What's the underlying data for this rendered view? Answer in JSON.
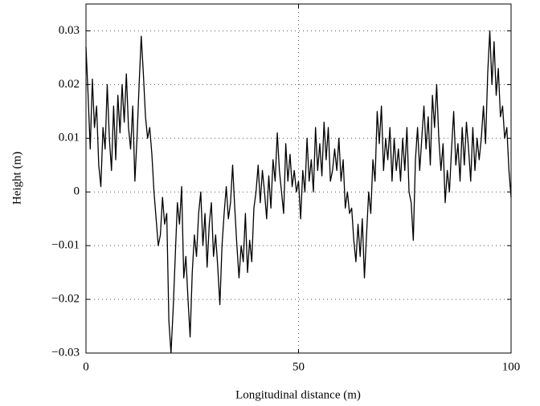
{
  "chart_data": {
    "type": "line",
    "x_label": "Longitudinal distance (m)",
    "y_label": "Height (m)",
    "xlim": [
      0,
      100
    ],
    "xticks": [
      0,
      50,
      100
    ],
    "ylim": [
      -0.03,
      0.035
    ],
    "yticks": [
      {
        "value": -0.03,
        "label": "−0.03"
      },
      {
        "value": -0.02,
        "label": "−0.02"
      },
      {
        "value": -0.01,
        "label": "−0.01"
      },
      0,
      0.01,
      0.02,
      0.03
    ],
    "grid": true,
    "x": [
      0,
      0.5,
      1,
      1.5,
      2,
      2.5,
      3,
      3.5,
      4,
      4.5,
      5,
      5.5,
      6,
      6.5,
      7,
      7.5,
      8,
      8.5,
      9,
      9.5,
      10,
      10.5,
      11,
      11.5,
      12,
      12.5,
      13,
      13.5,
      14,
      14.5,
      15,
      15.5,
      16,
      16.5,
      17,
      17.5,
      18,
      18.5,
      19,
      19.5,
      20,
      20.5,
      21,
      21.5,
      22,
      22.5,
      23,
      23.5,
      24,
      24.5,
      25,
      25.5,
      26,
      26.5,
      27,
      27.5,
      28,
      28.5,
      29,
      29.5,
      30,
      30.5,
      31,
      31.5,
      32,
      32.5,
      33,
      33.5,
      34,
      34.5,
      35,
      35.5,
      36,
      36.5,
      37,
      37.5,
      38,
      38.5,
      39,
      39.5,
      40,
      40.5,
      41,
      41.5,
      42,
      42.5,
      43,
      43.5,
      44,
      44.5,
      45,
      45.5,
      46,
      46.5,
      47,
      47.5,
      48,
      48.5,
      49,
      49.5,
      50,
      50.5,
      51,
      51.5,
      52,
      52.5,
      53,
      53.5,
      54,
      54.5,
      55,
      55.5,
      56,
      56.5,
      57,
      57.5,
      58,
      58.5,
      59,
      59.5,
      60,
      60.5,
      61,
      61.5,
      62,
      62.5,
      63,
      63.5,
      64,
      64.5,
      65,
      65.5,
      66,
      66.5,
      67,
      67.5,
      68,
      68.5,
      69,
      69.5,
      70,
      70.5,
      71,
      71.5,
      72,
      72.5,
      73,
      73.5,
      74,
      74.5,
      75,
      75.5,
      76,
      76.5,
      77,
      77.5,
      78,
      78.5,
      79,
      79.5,
      80,
      80.5,
      81,
      81.5,
      82,
      82.5,
      83,
      83.5,
      84,
      84.5,
      85,
      85.5,
      86,
      86.5,
      87,
      87.5,
      88,
      88.5,
      89,
      89.5,
      90,
      90.5,
      91,
      91.5,
      92,
      92.5,
      93,
      93.5,
      94,
      94.5,
      95,
      95.5,
      96,
      96.5,
      97,
      97.5,
      98,
      98.5,
      99,
      99.5,
      100
    ],
    "series": [
      {
        "color": "#000000",
        "values": [
          0.027,
          0.018,
          0.008,
          0.021,
          0.012,
          0.016,
          0.005,
          0.001,
          0.012,
          0.008,
          0.02,
          0.01,
          0.004,
          0.016,
          0.006,
          0.018,
          0.011,
          0.02,
          0.013,
          0.022,
          0.012,
          0.008,
          0.016,
          0.002,
          0.01,
          0.02,
          0.029,
          0.022,
          0.014,
          0.01,
          0.012,
          0.007,
          0.0,
          -0.005,
          -0.01,
          -0.008,
          -0.001,
          -0.006,
          -0.004,
          -0.024,
          -0.03,
          -0.022,
          -0.012,
          -0.002,
          -0.006,
          0.001,
          -0.016,
          -0.012,
          -0.02,
          -0.027,
          -0.015,
          -0.008,
          -0.012,
          -0.004,
          0.0,
          -0.01,
          -0.004,
          -0.014,
          -0.006,
          -0.002,
          -0.012,
          -0.008,
          -0.014,
          -0.021,
          -0.01,
          -0.004,
          0.001,
          -0.005,
          -0.002,
          0.005,
          -0.003,
          -0.01,
          -0.016,
          -0.01,
          -0.013,
          -0.004,
          -0.015,
          -0.009,
          -0.013,
          -0.003,
          0.0,
          0.005,
          -0.002,
          0.004,
          0.0,
          -0.005,
          0.003,
          -0.003,
          0.006,
          0.002,
          0.011,
          0.004,
          0.0,
          -0.004,
          0.009,
          0.002,
          0.007,
          0.001,
          0.004,
          0.0,
          0.002,
          -0.005,
          0.004,
          0.0,
          0.01,
          0.002,
          0.006,
          0.0,
          0.012,
          0.004,
          0.009,
          0.003,
          0.013,
          0.006,
          0.012,
          0.002,
          0.004,
          0.008,
          0.004,
          0.01,
          0.002,
          0.006,
          -0.003,
          0.0,
          -0.004,
          -0.003,
          -0.009,
          -0.013,
          -0.006,
          -0.012,
          -0.005,
          -0.016,
          -0.008,
          0.0,
          -0.004,
          0.006,
          0.002,
          0.015,
          0.009,
          0.016,
          0.004,
          0.01,
          0.006,
          0.012,
          0.002,
          0.01,
          0.004,
          0.008,
          0.002,
          0.01,
          0.004,
          0.012,
          0.0,
          -0.002,
          -0.009,
          0.006,
          0.012,
          0.004,
          0.01,
          0.016,
          0.008,
          0.014,
          0.005,
          0.018,
          0.012,
          0.02,
          0.01,
          0.004,
          0.009,
          -0.002,
          0.004,
          0.0,
          0.008,
          0.015,
          0.005,
          0.009,
          0.002,
          0.012,
          0.005,
          0.013,
          0.008,
          0.002,
          0.012,
          0.004,
          0.01,
          0.006,
          0.01,
          0.016,
          0.009,
          0.022,
          0.03,
          0.02,
          0.028,
          0.018,
          0.023,
          0.014,
          0.016,
          0.01,
          0.012,
          0.004,
          -0.001
        ]
      }
    ]
  }
}
